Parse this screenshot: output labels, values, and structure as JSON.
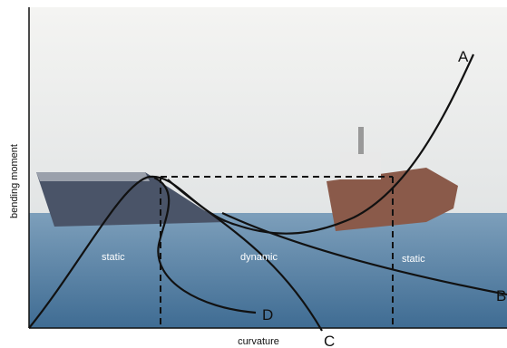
{
  "axes": {
    "x_label": "curvature",
    "y_label": "bending moment"
  },
  "curves": {
    "a": "A",
    "b": "B",
    "c": "C",
    "d": "D"
  },
  "regions": [
    "static",
    "dynamic",
    "static"
  ]
}
